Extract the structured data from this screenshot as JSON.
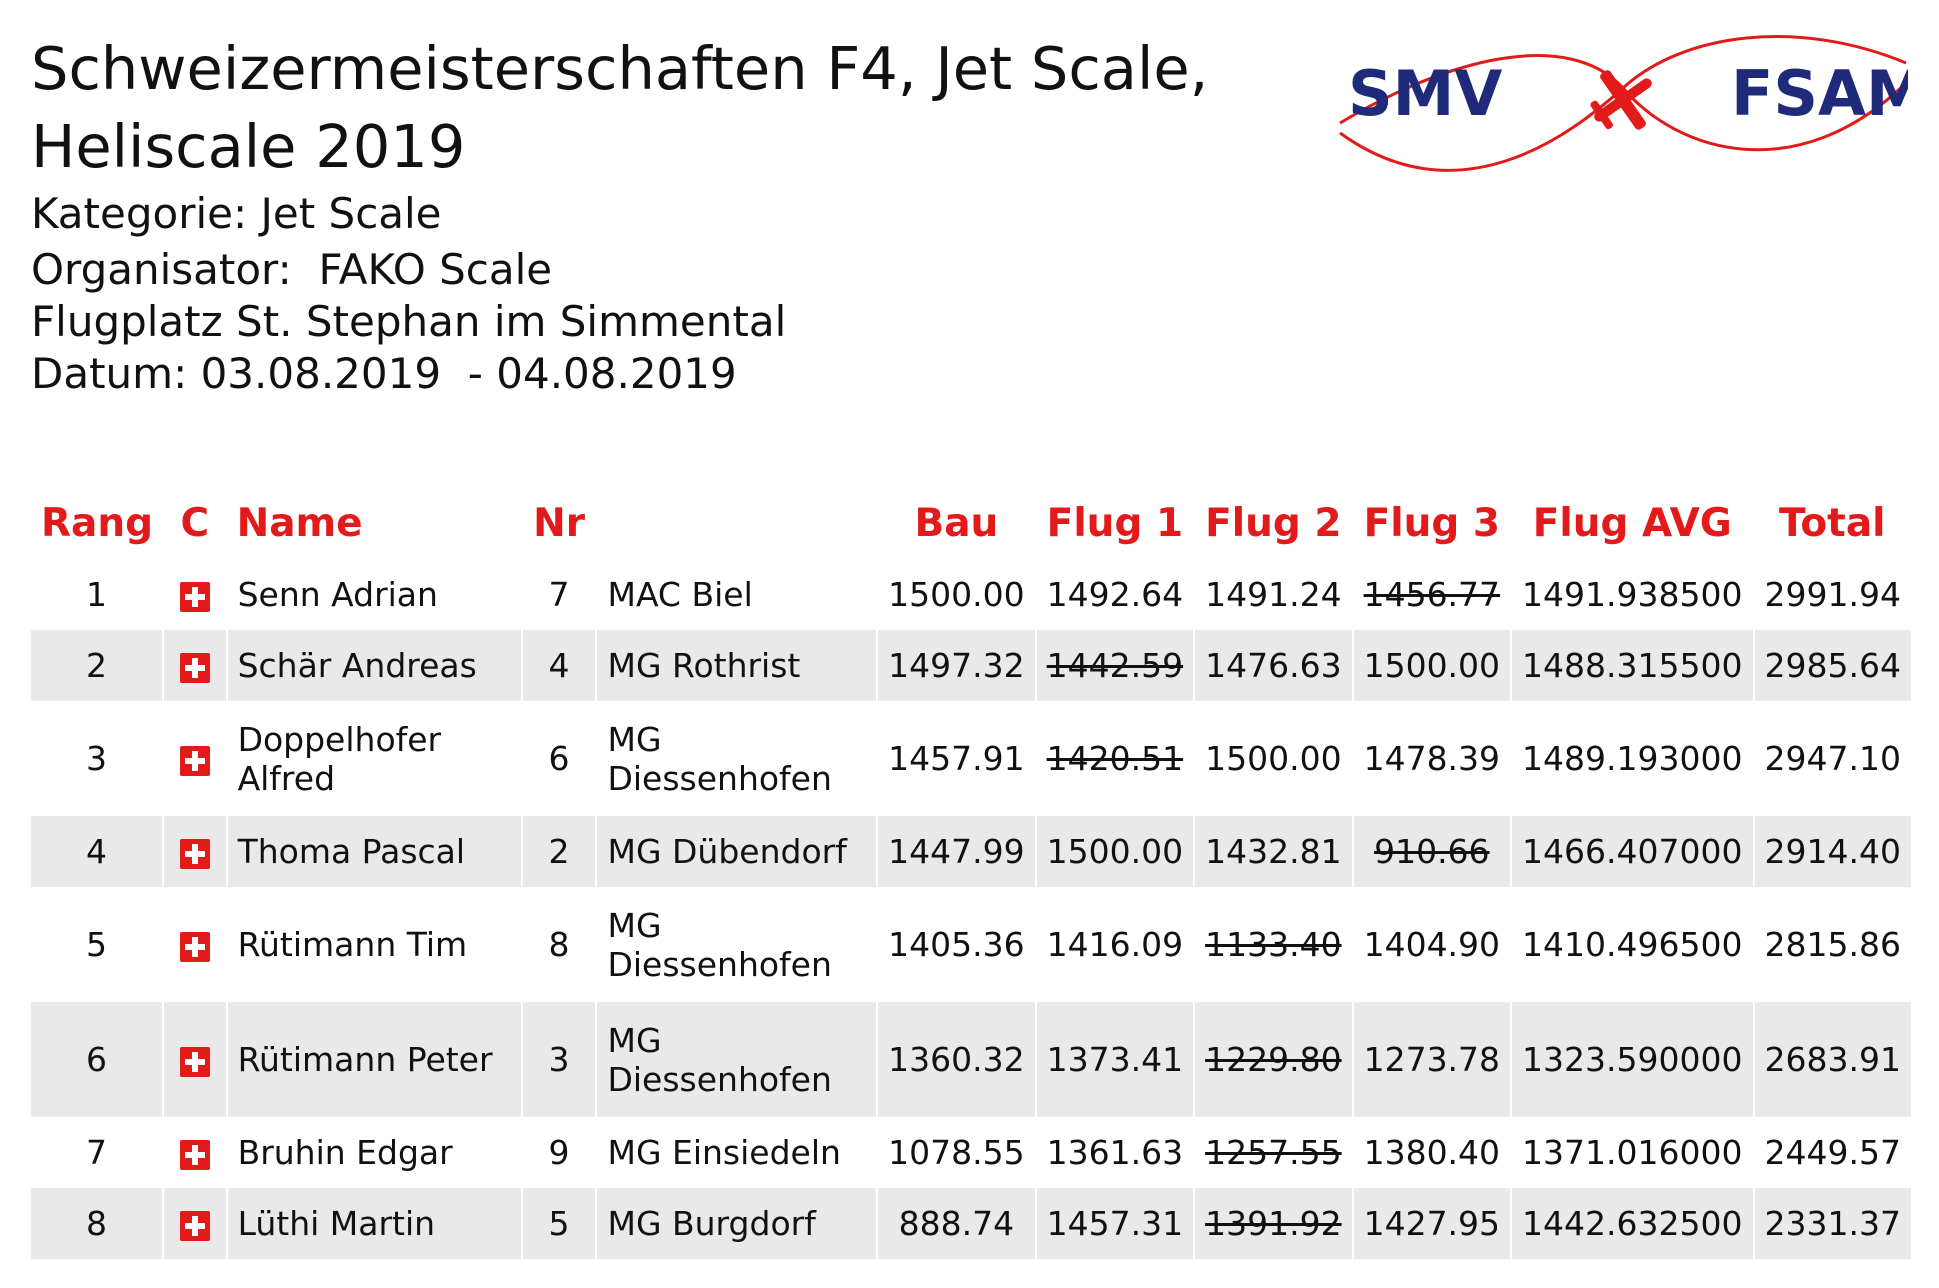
{
  "header": {
    "title_line1": "Schweizermeisterschaften F4, Jet Scale,",
    "title_line2": "Heliscale 2019",
    "category": "Kategorie: Jet Scale",
    "organizer": "Organisator:  FAKO Scale",
    "location": "Flugplatz St. Stephan im Simmental",
    "date": "Datum: 03.08.2019  - 04.08.2019"
  },
  "logo": {
    "left_text": "SMV",
    "right_text": "FSAM",
    "icon": "airplane-icon",
    "text_color": "#1f2b7a",
    "accent_color": "#e21a1a"
  },
  "colors": {
    "header_text": "#e21a1a",
    "row_shade": "#e9e9e9"
  },
  "table": {
    "columns": {
      "rang": "Rang",
      "c": "C",
      "name": "Name",
      "nr": "Nr",
      "club": "",
      "bau": "Bau",
      "flug1": "Flug 1",
      "flug2": "Flug 2",
      "flug3": "Flug 3",
      "flug_avg": "Flug AVG",
      "total": "Total"
    },
    "rows": [
      {
        "rang": "1",
        "name": "Senn Adrian",
        "nr": "7",
        "club": "MAC Biel",
        "bau": "1500.00",
        "flug1": "1492.64",
        "flug2": "1491.24",
        "flug3": "1456.77",
        "flug_avg": "1491.938500",
        "total": "2991.94"
      },
      {
        "rang": "2",
        "name": "Schär Andreas",
        "nr": "4",
        "club": "MG Rothrist",
        "bau": "1497.32",
        "flug1": "1442.59",
        "flug2": "1476.63",
        "flug3": "1500.00",
        "flug_avg": "1488.315500",
        "total": "2985.64"
      },
      {
        "rang": "3",
        "name": "Doppelhofer Alfred",
        "nr": "6",
        "club": "MG Diessenhofen",
        "bau": "1457.91",
        "flug1": "1420.51",
        "flug2": "1500.00",
        "flug3": "1478.39",
        "flug_avg": "1489.193000",
        "total": "2947.10"
      },
      {
        "rang": "4",
        "name": "Thoma Pascal",
        "nr": "2",
        "club": "MG Dübendorf",
        "bau": "1447.99",
        "flug1": "1500.00",
        "flug2": "1432.81",
        "flug3": "910.66",
        "flug_avg": "1466.407000",
        "total": "2914.40"
      },
      {
        "rang": "5",
        "name": "Rütimann Tim",
        "nr": "8",
        "club": "MG Diessenhofen",
        "bau": "1405.36",
        "flug1": "1416.09",
        "flug2": "1133.40",
        "flug3": "1404.90",
        "flug_avg": "1410.496500",
        "total": "2815.86"
      },
      {
        "rang": "6",
        "name": "Rütimann Peter",
        "nr": "3",
        "club": "MG Diessenhofen",
        "bau": "1360.32",
        "flug1": "1373.41",
        "flug2": "1229.80",
        "flug3": "1273.78",
        "flug_avg": "1323.590000",
        "total": "2683.91"
      },
      {
        "rang": "7",
        "name": "Bruhin Edgar",
        "nr": "9",
        "club": "MG Einsiedeln",
        "bau": "1078.55",
        "flug1": "1361.63",
        "flug2": "1257.55",
        "flug3": "1380.40",
        "flug_avg": "1371.016000",
        "total": "2449.57"
      },
      {
        "rang": "8",
        "name": "Lüthi Martin",
        "nr": "5",
        "club": "MG Burgdorf",
        "bau": "888.74",
        "flug1": "1457.31",
        "flug2": "1391.92",
        "flug3": "1427.95",
        "flug_avg": "1442.632500",
        "total": "2331.37"
      }
    ]
  }
}
